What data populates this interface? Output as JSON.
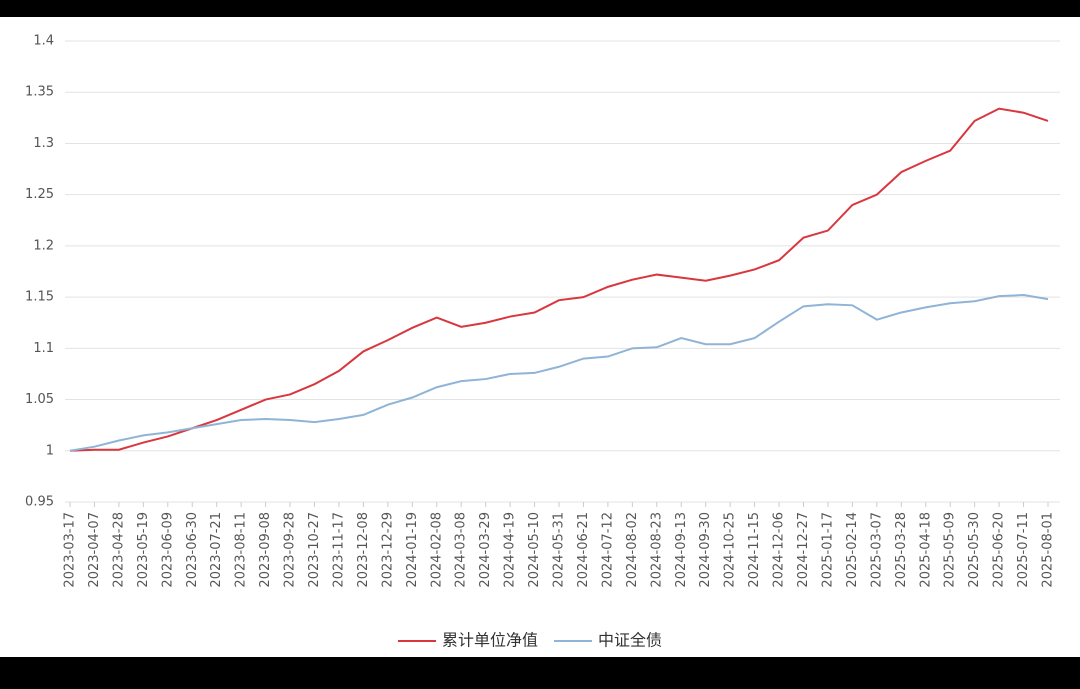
{
  "chart_data": {
    "type": "line",
    "categories": [
      "2023-03-17",
      "2023-04-07",
      "2023-04-28",
      "2023-05-19",
      "2023-06-09",
      "2023-06-30",
      "2023-07-21",
      "2023-08-11",
      "2023-09-08",
      "2023-09-28",
      "2023-10-27",
      "2023-11-17",
      "2023-12-08",
      "2023-12-29",
      "2024-01-19",
      "2024-02-08",
      "2024-03-08",
      "2024-03-29",
      "2024-04-19",
      "2024-05-10",
      "2024-05-31",
      "2024-06-21",
      "2024-07-12",
      "2024-08-02",
      "2024-08-23",
      "2024-09-13",
      "2024-09-30",
      "2024-10-25",
      "2024-11-15",
      "2024-12-06",
      "2024-12-27",
      "2025-01-17",
      "2025-02-14",
      "2025-03-07",
      "2025-03-28",
      "2025-04-18",
      "2025-05-09",
      "2025-05-30",
      "2025-06-20",
      "2025-07-11",
      "2025-08-01"
    ],
    "series": [
      {
        "name": "累计单位净值",
        "color": "#d9363e",
        "values": [
          1.0,
          1.001,
          1.001,
          1.008,
          1.014,
          1.022,
          1.03,
          1.04,
          1.05,
          1.055,
          1.065,
          1.078,
          1.097,
          1.108,
          1.12,
          1.13,
          1.121,
          1.125,
          1.131,
          1.135,
          1.147,
          1.15,
          1.16,
          1.167,
          1.172,
          1.169,
          1.166,
          1.171,
          1.177,
          1.186,
          1.208,
          1.215,
          1.24,
          1.25,
          1.272,
          1.283,
          1.293,
          1.322,
          1.334,
          1.33,
          1.322
        ]
      },
      {
        "name": "中证全债",
        "color": "#8fb4d6",
        "values": [
          1.0,
          1.004,
          1.01,
          1.015,
          1.018,
          1.022,
          1.026,
          1.03,
          1.031,
          1.03,
          1.028,
          1.031,
          1.035,
          1.045,
          1.052,
          1.062,
          1.068,
          1.07,
          1.075,
          1.076,
          1.082,
          1.09,
          1.092,
          1.1,
          1.101,
          1.11,
          1.104,
          1.104,
          1.11,
          1.126,
          1.141,
          1.143,
          1.142,
          1.128,
          1.135,
          1.14,
          1.144,
          1.146,
          1.151,
          1.152,
          1.148
        ]
      }
    ],
    "ylim": [
      0.95,
      1.4
    ],
    "yticks": [
      0.95,
      1,
      1.05,
      1.1,
      1.15,
      1.2,
      1.25,
      1.3,
      1.35,
      1.4
    ],
    "grid": true,
    "legend": "bottom"
  }
}
